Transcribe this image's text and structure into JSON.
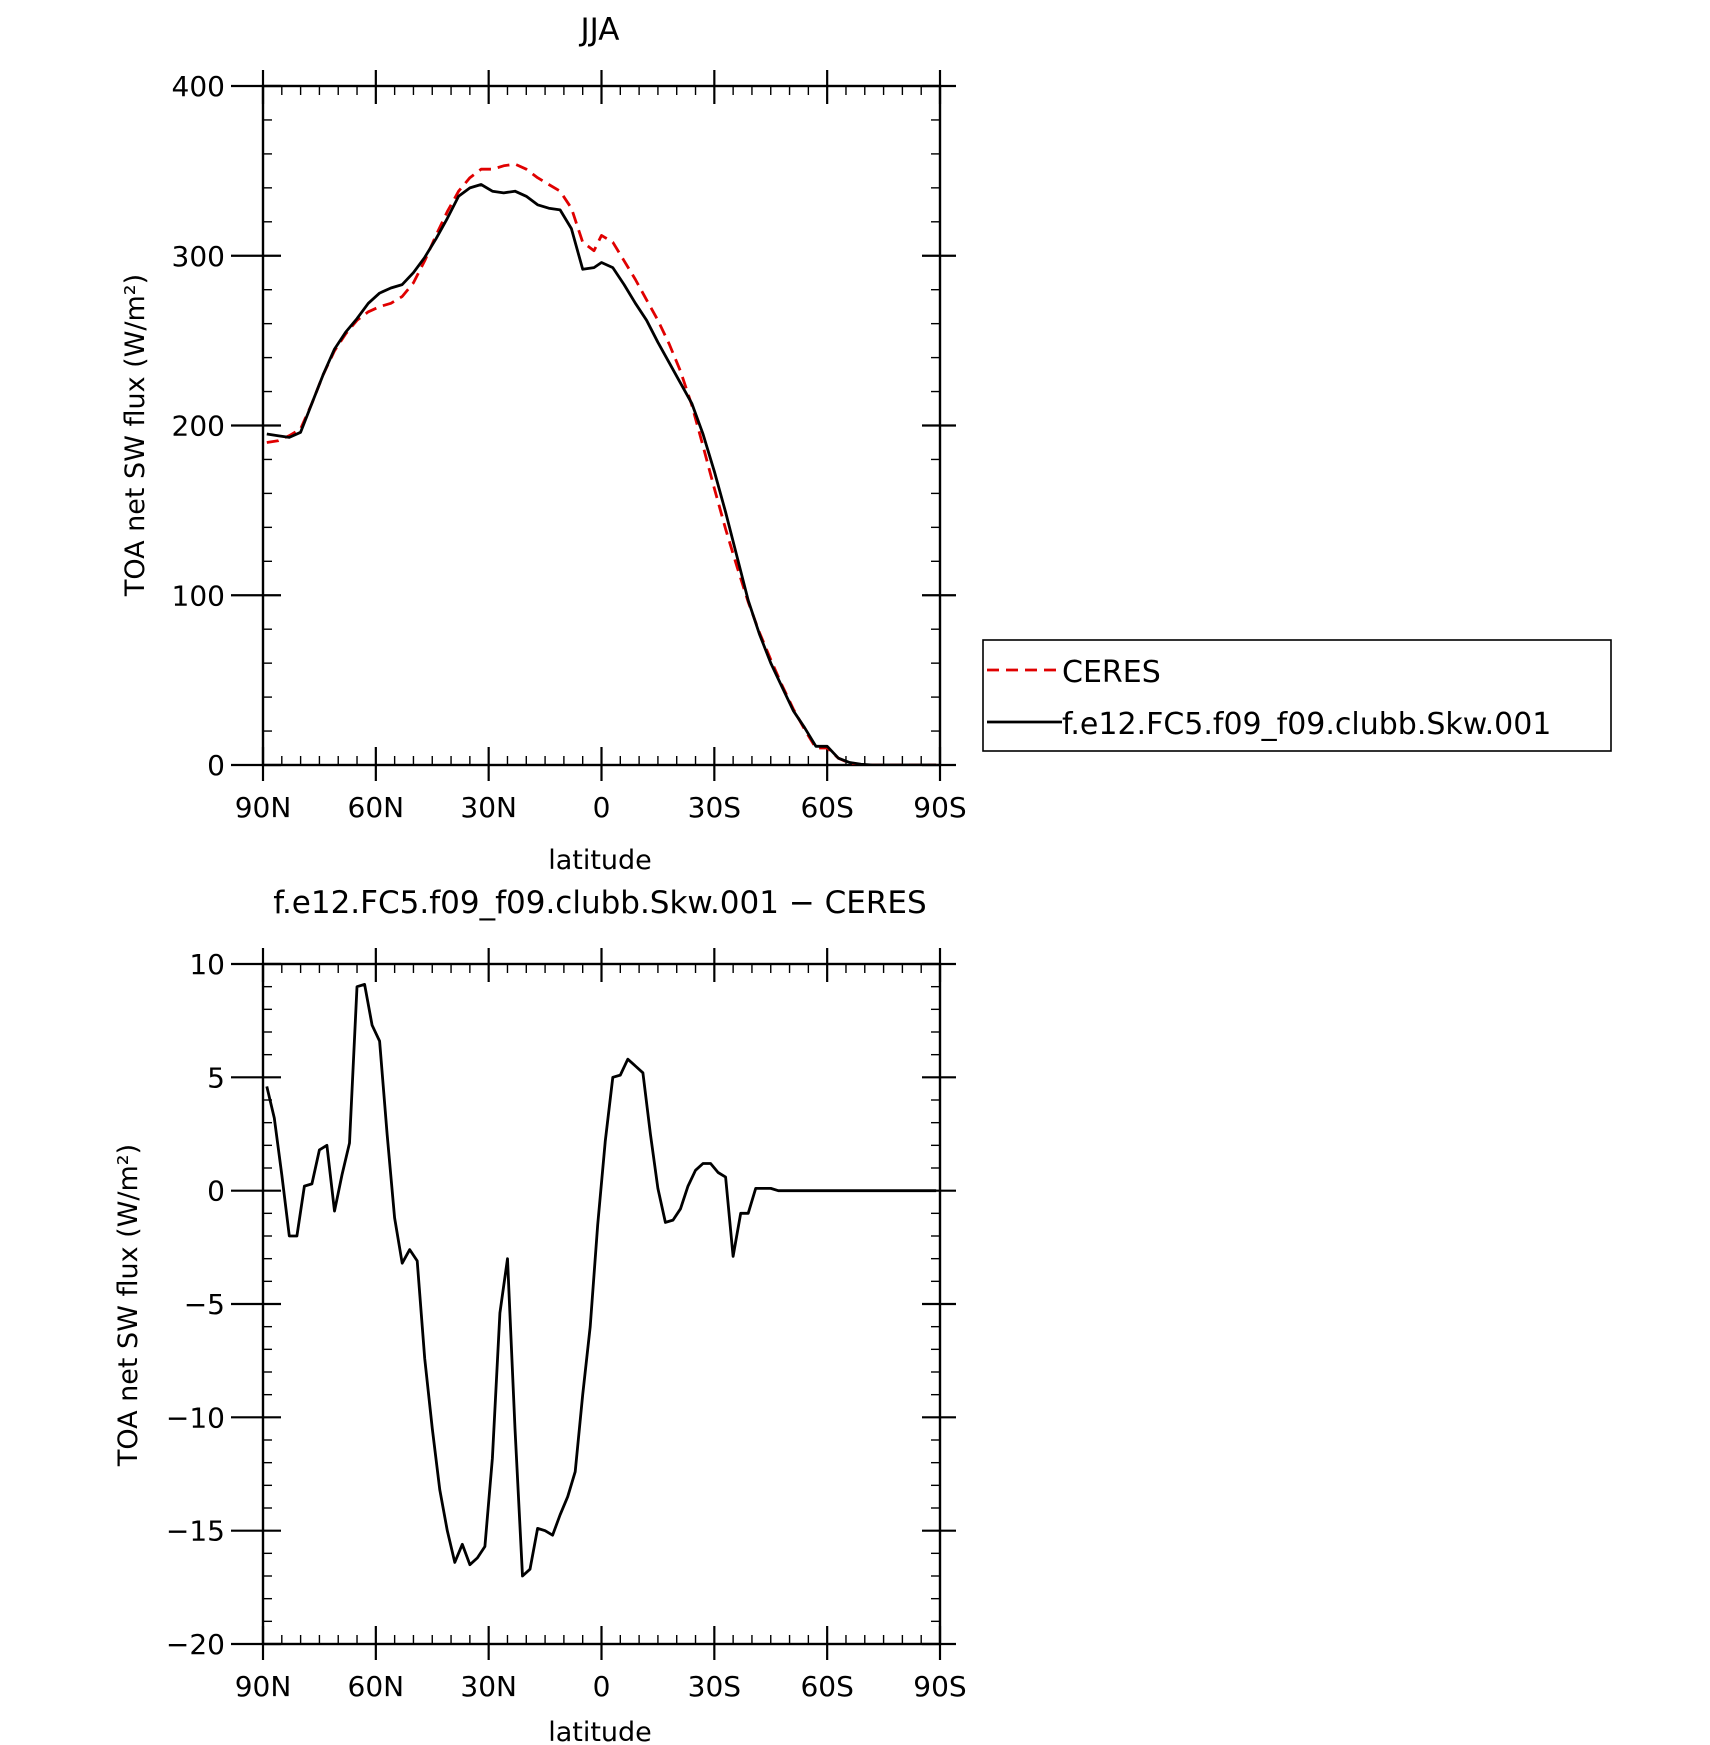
{
  "chart_data": [
    {
      "type": "line",
      "title": "JJA",
      "xlabel": "latitude",
      "ylabel": "TOA net SW flux (W/m²)",
      "xlim": [
        90,
        -90
      ],
      "ylim": [
        0,
        400
      ],
      "x_ticks": [
        90,
        60,
        30,
        0,
        -30,
        -60,
        -90
      ],
      "x_tick_labels": [
        "90N",
        "60N",
        "30N",
        "0",
        "30S",
        "60S",
        "90S"
      ],
      "y_ticks": [
        0,
        100,
        200,
        300,
        400
      ],
      "y_tick_labels": [
        "0",
        "100",
        "200",
        "300",
        "400"
      ],
      "legend_placement": "right",
      "series": [
        {
          "name": "CERES",
          "color": "#e00000",
          "dash": "dashed",
          "x": [
            89,
            86,
            83,
            80,
            77,
            74,
            71,
            68,
            65,
            62,
            59,
            56,
            53,
            50,
            47,
            44,
            41,
            38,
            35,
            32,
            29,
            26,
            23,
            20,
            17,
            14,
            11,
            8,
            5,
            2,
            0,
            -3,
            -6,
            -9,
            -12,
            -15,
            -18,
            -21,
            -24,
            -27,
            -30,
            -33,
            -36,
            -39,
            -42,
            -45,
            -48,
            -51,
            -54,
            -57,
            -60,
            -63,
            -66,
            -69,
            -72,
            -75,
            -78,
            -81,
            -84,
            -87,
            -89
          ],
          "y": [
            190,
            191,
            194,
            198,
            213,
            230,
            244,
            254,
            262,
            267,
            270,
            272,
            276,
            284,
            297,
            312,
            326,
            338,
            346,
            351,
            351,
            353,
            354,
            351,
            346,
            342,
            338,
            328,
            308,
            303,
            312,
            308,
            297,
            286,
            274,
            262,
            248,
            232,
            212,
            188,
            163,
            139,
            117,
            96,
            78,
            62,
            47,
            33,
            21,
            10,
            10,
            4,
            1,
            0.3,
            0,
            0,
            0,
            0,
            0,
            0,
            0
          ]
        },
        {
          "name": "f.e12.FC5.f09_f09.clubb.Skw.001",
          "color": "#000000",
          "dash": "solid",
          "x": [
            89,
            86,
            83,
            80,
            77,
            74,
            71,
            68,
            65,
            62,
            59,
            56,
            53,
            50,
            47,
            44,
            41,
            38,
            35,
            32,
            29,
            26,
            23,
            20,
            17,
            14,
            11,
            8,
            5,
            2,
            0,
            -3,
            -6,
            -9,
            -12,
            -15,
            -18,
            -21,
            -24,
            -27,
            -30,
            -33,
            -36,
            -39,
            -42,
            -45,
            -48,
            -51,
            -54,
            -57,
            -60,
            -63,
            -66,
            -69,
            -72,
            -75,
            -78,
            -81,
            -84,
            -87,
            -89
          ],
          "y": [
            195,
            194,
            193,
            196,
            213,
            230,
            245,
            255,
            263,
            272,
            278,
            281,
            283,
            290,
            299,
            310,
            322,
            335,
            340,
            342,
            338,
            337,
            338,
            335,
            330,
            328,
            327,
            316,
            292,
            293,
            296,
            293,
            283,
            272,
            262,
            249,
            237,
            225,
            213,
            195,
            173,
            149,
            123,
            97,
            77,
            60,
            46,
            32,
            22,
            11,
            11,
            4,
            1.5,
            0.4,
            0,
            0,
            0,
            0,
            0,
            0,
            0
          ]
        }
      ]
    },
    {
      "type": "line",
      "title": "f.e12.FC5.f09_f09.clubb.Skw.001 − CERES",
      "xlabel": "latitude",
      "ylabel": "TOA net SW flux (W/m²)",
      "xlim": [
        90,
        -90
      ],
      "ylim": [
        -20,
        10
      ],
      "x_ticks": [
        90,
        60,
        30,
        0,
        -30,
        -60,
        -90
      ],
      "x_tick_labels": [
        "90N",
        "60N",
        "30N",
        "0",
        "30S",
        "60S",
        "90S"
      ],
      "y_ticks": [
        -20,
        -15,
        -10,
        -5,
        0,
        5,
        10
      ],
      "y_tick_labels": [
        "−20",
        "−15",
        "−10",
        "−5",
        "0",
        "5",
        "10"
      ],
      "series": [
        {
          "color": "#000000",
          "dash": "solid",
          "x": [
            89,
            87,
            85,
            83,
            81,
            79,
            77,
            75,
            73,
            71,
            69,
            67,
            65,
            63,
            61,
            59,
            57,
            55,
            53,
            51,
            49,
            47,
            45,
            43,
            41,
            39,
            37,
            35,
            33,
            31,
            29,
            27,
            25,
            23,
            21,
            19,
            17,
            15,
            13,
            11,
            9,
            7,
            5,
            3,
            1,
            -1,
            -3,
            -5,
            -7,
            -9,
            -11,
            -13,
            -15,
            -17,
            -19,
            -21,
            -23,
            -25,
            -27,
            -29,
            -31,
            -33,
            -35,
            -37,
            -39,
            -41,
            -43,
            -45,
            -47,
            -49,
            -51,
            -53,
            -55,
            -57,
            -59,
            -61,
            -63,
            -65,
            -67,
            -69,
            -71,
            -73,
            -75,
            -77,
            -79,
            -81,
            -83,
            -85,
            -87,
            -89
          ],
          "y": [
            4.6,
            3.2,
            0.7,
            -2.0,
            -2.0,
            0.2,
            0.3,
            1.8,
            2.0,
            -0.9,
            0.7,
            2.1,
            9.0,
            9.1,
            7.3,
            6.6,
            2.5,
            -1.2,
            -3.2,
            -2.6,
            -3.1,
            -7.4,
            -10.5,
            -13.2,
            -15.0,
            -16.4,
            -15.6,
            -16.5,
            -16.2,
            -15.7,
            -11.8,
            -5.4,
            -3.0,
            -10.5,
            -17.0,
            -16.7,
            -14.9,
            -15.0,
            -15.2,
            -14.3,
            -13.5,
            -12.4,
            -9.0,
            -6.0,
            -1.5,
            2.2,
            5.0,
            5.1,
            5.8,
            5.5,
            5.2,
            2.5,
            0.1,
            -1.4,
            -1.3,
            -0.8,
            0.2,
            0.9,
            1.2,
            1.2,
            0.8,
            0.6,
            -2.9,
            -1.0,
            -1.0,
            0.1,
            0.1,
            0.1,
            0.0,
            0.0,
            0.0,
            0.0,
            0.0,
            0.0,
            0.0,
            0.0,
            0.0,
            0.0,
            0.0,
            0.0,
            0.0,
            0.0,
            0.0,
            0.0,
            0.0,
            0.0,
            0.0,
            0.0,
            0.0,
            0.0
          ]
        }
      ]
    }
  ]
}
